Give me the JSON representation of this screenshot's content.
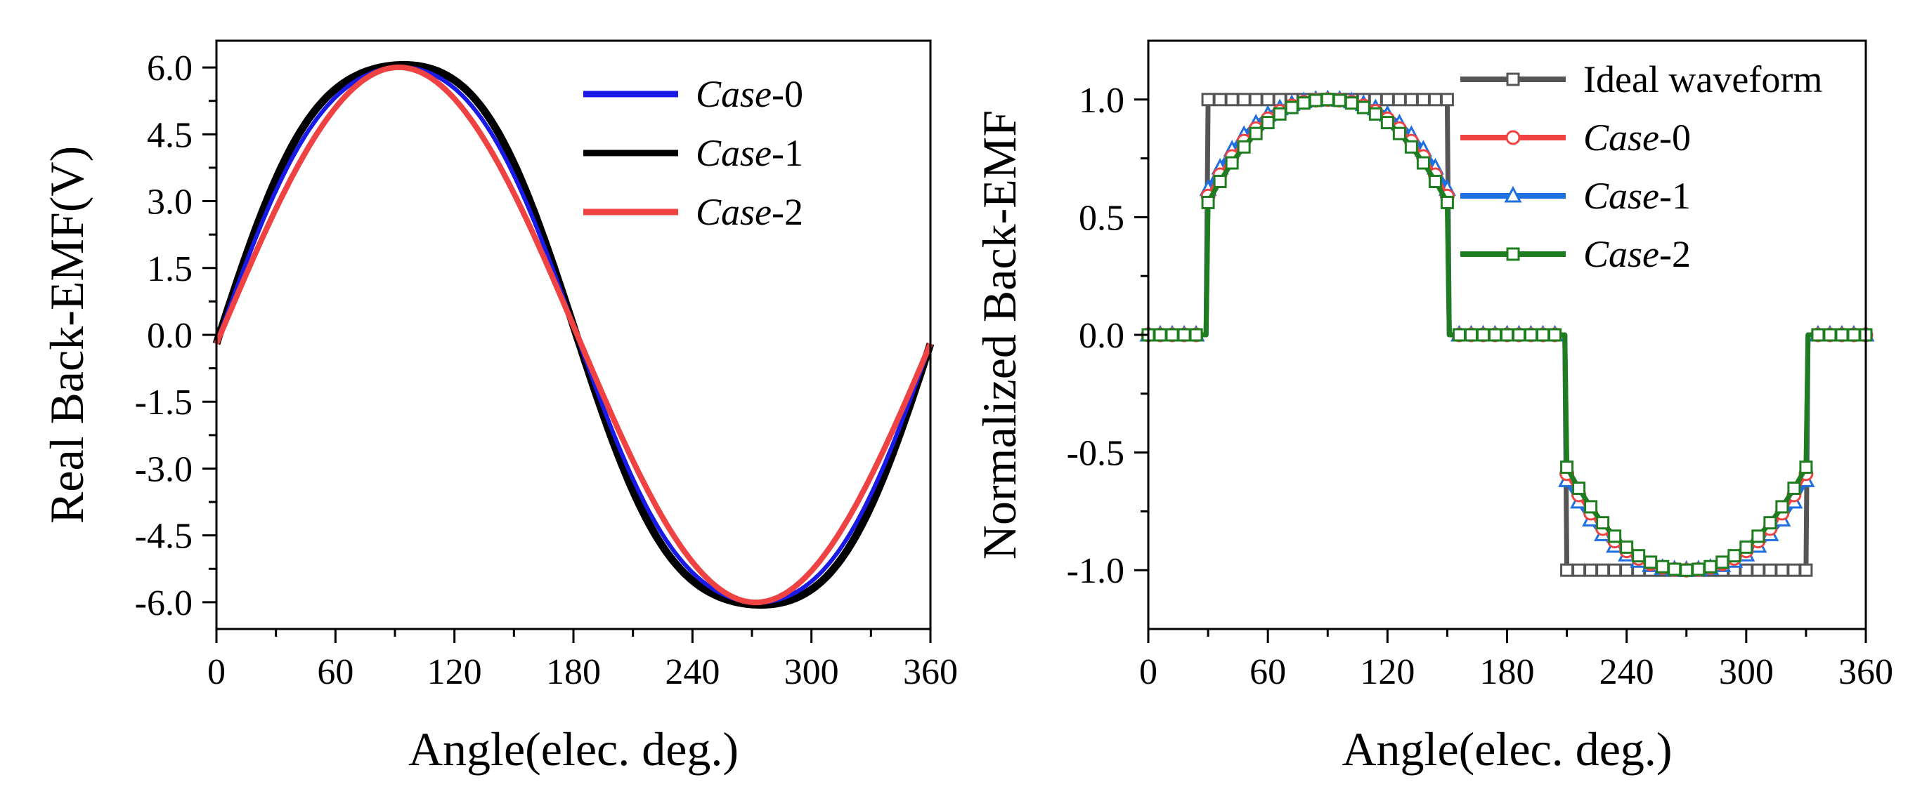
{
  "chart_data": [
    {
      "type": "line",
      "id": "left",
      "title": "",
      "xlabel": "Angle(elec. deg.)",
      "ylabel": "Real Back-EMF(V)",
      "xlim": [
        0,
        360
      ],
      "ylim": [
        -6.6,
        6.6
      ],
      "xticks": [
        0,
        60,
        120,
        180,
        240,
        300,
        360
      ],
      "yticks": [
        6.0,
        4.5,
        3.0,
        1.5,
        0.0,
        -1.5,
        -3.0,
        -4.5,
        -6.0
      ],
      "ytick_labels": [
        "6.0",
        "4.5",
        "3.0",
        "1.5",
        "0.0",
        "-1.5",
        "-3.0",
        "-4.5",
        "-6.0"
      ],
      "legend_position": "top-right",
      "series": [
        {
          "name": "Case-0",
          "label_italic": "Case",
          "label_suffix": "-0",
          "color": "#1a1ae6",
          "model": "sine",
          "amplitude": 6.0,
          "shape_factor": 0.13,
          "phase_offset": -0.2
        },
        {
          "name": "Case-1",
          "label_italic": "Case",
          "label_suffix": "-1",
          "color": "#000000",
          "model": "sine",
          "amplitude": 6.05,
          "shape_factor": 0.2,
          "phase_offset": -0.2
        },
        {
          "name": "Case-2",
          "label_italic": "Case",
          "label_suffix": "-2",
          "color": "#ef4242",
          "model": "sine",
          "amplitude": 6.0,
          "shape_factor": 0.0,
          "phase_offset": -0.2
        }
      ]
    },
    {
      "type": "line",
      "id": "right",
      "title": "",
      "xlabel": "Angle(elec. deg.)",
      "ylabel": "Normalized Back-EMF",
      "xlim": [
        0,
        360
      ],
      "ylim": [
        -1.25,
        1.25
      ],
      "xticks": [
        0,
        60,
        120,
        180,
        240,
        300,
        360
      ],
      "yticks": [
        1.0,
        0.5,
        0.0,
        -0.5,
        -1.0
      ],
      "ytick_labels": [
        "1.0",
        "0.5",
        "0.0",
        "-0.5",
        "-1.0"
      ],
      "legend_position": "top-right",
      "marker_step_deg": 6,
      "series": [
        {
          "name": "Ideal waveform",
          "label_italic": "",
          "label_suffix": "Ideal waveform",
          "color": "#555555",
          "marker": "square",
          "model": "trapezoid",
          "edge_start_value": 1.0
        },
        {
          "name": "Case-0",
          "label_italic": "Case",
          "label_suffix": "-0",
          "color": "#ef4242",
          "marker": "circle",
          "model": "flattop",
          "edge_start_value": 0.55,
          "shape_factor": 0.17
        },
        {
          "name": "Case-1",
          "label_italic": "Case",
          "label_suffix": "-1",
          "color": "#1f6fe0",
          "marker": "triangle",
          "model": "flattop",
          "edge_start_value": 0.6,
          "shape_factor": 0.22
        },
        {
          "name": "Case-2",
          "label_italic": "Case",
          "label_suffix": "-2",
          "color": "#1e7d1e",
          "marker": "square",
          "model": "flattop",
          "edge_start_value": 0.48,
          "shape_factor": 0.12
        }
      ]
    }
  ]
}
